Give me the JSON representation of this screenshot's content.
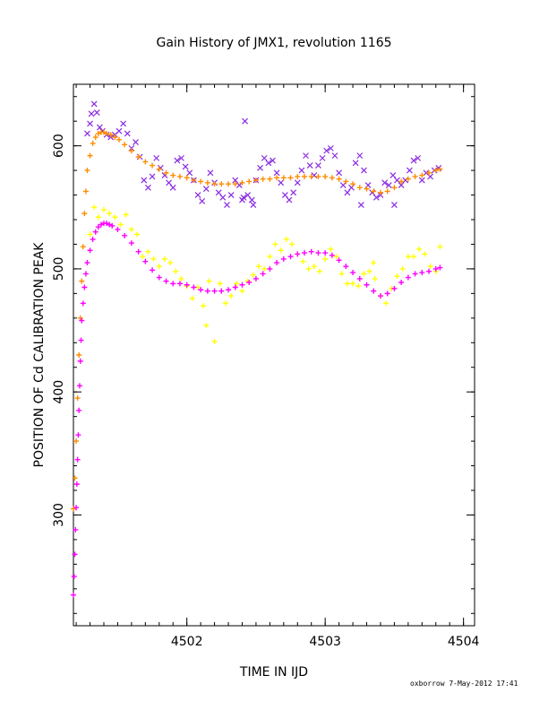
{
  "chart_data": {
    "type": "scatter",
    "title": "Gain History of JMX1, revolution 1165",
    "xlabel": "TIME IN IJD",
    "ylabel": "POSITION OF Cd CALIBRATION PEAK",
    "xlim": [
      4501.18,
      4504.08
    ],
    "ylim": [
      210,
      650
    ],
    "x_ticks": [
      4502,
      4503,
      4504
    ],
    "y_ticks": [
      300,
      400,
      500,
      600
    ],
    "grid": false,
    "series": [
      {
        "color": "#8a2be2",
        "marker": "x",
        "points": [
          [
            4501.28,
            610
          ],
          [
            4501.3,
            618
          ],
          [
            4501.31,
            626
          ],
          [
            4501.33,
            634
          ],
          [
            4501.35,
            627
          ],
          [
            4501.37,
            615
          ],
          [
            4501.39,
            612
          ],
          [
            4501.42,
            609
          ],
          [
            4501.45,
            607
          ],
          [
            4501.48,
            609
          ],
          [
            4501.51,
            612
          ],
          [
            4501.54,
            618
          ],
          [
            4501.57,
            610
          ],
          [
            4501.6,
            598
          ],
          [
            4501.63,
            603
          ],
          [
            4501.66,
            591
          ],
          [
            4501.69,
            572
          ],
          [
            4501.72,
            566
          ],
          [
            4501.75,
            575
          ],
          [
            4501.78,
            590
          ],
          [
            4501.81,
            582
          ],
          [
            4501.84,
            576
          ],
          [
            4501.87,
            570
          ],
          [
            4501.9,
            566
          ],
          [
            4501.93,
            588
          ],
          [
            4501.96,
            590
          ],
          [
            4501.99,
            583
          ],
          [
            4502.02,
            578
          ],
          [
            4502.05,
            572
          ],
          [
            4502.08,
            560
          ],
          [
            4502.11,
            555
          ],
          [
            4502.14,
            565
          ],
          [
            4502.17,
            578
          ],
          [
            4502.2,
            570
          ],
          [
            4502.23,
            562
          ],
          [
            4502.26,
            558
          ],
          [
            4502.29,
            552
          ],
          [
            4502.32,
            560
          ],
          [
            4502.35,
            572
          ],
          [
            4502.38,
            568
          ],
          [
            4502.41,
            558
          ],
          [
            4502.44,
            560
          ],
          [
            4502.47,
            556
          ],
          [
            4502.5,
            572
          ],
          [
            4502.53,
            582
          ],
          [
            4502.56,
            590
          ],
          [
            4502.59,
            586
          ],
          [
            4502.62,
            588
          ],
          [
            4502.65,
            578
          ],
          [
            4502.68,
            570
          ],
          [
            4502.71,
            560
          ],
          [
            4502.74,
            556
          ],
          [
            4502.77,
            562
          ],
          [
            4502.8,
            570
          ],
          [
            4502.83,
            580
          ],
          [
            4502.86,
            592
          ],
          [
            4502.89,
            584
          ],
          [
            4502.92,
            576
          ],
          [
            4502.95,
            584
          ],
          [
            4502.98,
            590
          ],
          [
            4503.01,
            596
          ],
          [
            4503.04,
            598
          ],
          [
            4503.07,
            592
          ],
          [
            4503.1,
            578
          ],
          [
            4503.13,
            568
          ],
          [
            4503.16,
            562
          ],
          [
            4503.19,
            566
          ],
          [
            4503.22,
            586
          ],
          [
            4503.25,
            592
          ],
          [
            4503.28,
            580
          ],
          [
            4503.31,
            568
          ],
          [
            4503.34,
            562
          ],
          [
            4503.37,
            558
          ],
          [
            4503.4,
            560
          ],
          [
            4503.43,
            570
          ],
          [
            4503.46,
            568
          ],
          [
            4503.49,
            576
          ],
          [
            4503.52,
            572
          ],
          [
            4503.55,
            568
          ],
          [
            4503.58,
            572
          ],
          [
            4503.61,
            580
          ],
          [
            4503.64,
            588
          ],
          [
            4503.67,
            590
          ],
          [
            4503.7,
            572
          ],
          [
            4503.73,
            578
          ],
          [
            4503.76,
            575
          ],
          [
            4503.79,
            580
          ],
          [
            4503.82,
            582
          ],
          [
            4502.42,
            620
          ],
          [
            4502.4,
            556
          ],
          [
            4502.48,
            552
          ],
          [
            4503.26,
            552
          ],
          [
            4503.5,
            552
          ]
        ]
      },
      {
        "color": "#ff8c00",
        "marker": "+",
        "points": [
          [
            4501.18,
            305
          ],
          [
            4501.19,
            330
          ],
          [
            4501.2,
            360
          ],
          [
            4501.21,
            395
          ],
          [
            4501.22,
            430
          ],
          [
            4501.23,
            460
          ],
          [
            4501.24,
            490
          ],
          [
            4501.25,
            518
          ],
          [
            4501.26,
            545
          ],
          [
            4501.27,
            563
          ],
          [
            4501.28,
            580
          ],
          [
            4501.3,
            592
          ],
          [
            4501.32,
            602
          ],
          [
            4501.34,
            607
          ],
          [
            4501.36,
            610
          ],
          [
            4501.38,
            611
          ],
          [
            4501.4,
            611
          ],
          [
            4501.42,
            610
          ],
          [
            4501.45,
            609
          ],
          [
            4501.48,
            607
          ],
          [
            4501.51,
            605
          ],
          [
            4501.55,
            601
          ],
          [
            4501.6,
            596
          ],
          [
            4501.65,
            591
          ],
          [
            4501.7,
            587
          ],
          [
            4501.75,
            584
          ],
          [
            4501.8,
            581
          ],
          [
            4501.85,
            578
          ],
          [
            4501.9,
            576
          ],
          [
            4501.95,
            575
          ],
          [
            4502.0,
            574
          ],
          [
            4502.05,
            572
          ],
          [
            4502.1,
            571
          ],
          [
            4502.15,
            570
          ],
          [
            4502.2,
            569
          ],
          [
            4502.25,
            569
          ],
          [
            4502.3,
            569
          ],
          [
            4502.35,
            569
          ],
          [
            4502.4,
            570
          ],
          [
            4502.45,
            571
          ],
          [
            4502.5,
            572
          ],
          [
            4502.55,
            573
          ],
          [
            4502.6,
            573
          ],
          [
            4502.65,
            574
          ],
          [
            4502.7,
            574
          ],
          [
            4502.75,
            574
          ],
          [
            4502.8,
            575
          ],
          [
            4502.85,
            575
          ],
          [
            4502.9,
            575
          ],
          [
            4502.95,
            575
          ],
          [
            4503.0,
            575
          ],
          [
            4503.05,
            574
          ],
          [
            4503.1,
            573
          ],
          [
            4503.15,
            571
          ],
          [
            4503.2,
            569
          ],
          [
            4503.25,
            566
          ],
          [
            4503.3,
            565
          ],
          [
            4503.35,
            563
          ],
          [
            4503.4,
            562
          ],
          [
            4503.45,
            563
          ],
          [
            4503.5,
            566
          ],
          [
            4503.55,
            571
          ],
          [
            4503.6,
            573
          ],
          [
            4503.65,
            575
          ],
          [
            4503.7,
            576
          ],
          [
            4503.75,
            578
          ],
          [
            4503.8,
            580
          ],
          [
            4503.83,
            581
          ]
        ]
      },
      {
        "color": "#ffff00",
        "marker": "+",
        "points": [
          [
            4501.3,
            528
          ],
          [
            4501.33,
            550
          ],
          [
            4501.36,
            542
          ],
          [
            4501.4,
            548
          ],
          [
            4501.44,
            545
          ],
          [
            4501.48,
            542
          ],
          [
            4501.52,
            536
          ],
          [
            4501.56,
            544
          ],
          [
            4501.6,
            532
          ],
          [
            4501.64,
            528
          ],
          [
            4501.68,
            510
          ],
          [
            4501.72,
            514
          ],
          [
            4501.76,
            508
          ],
          [
            4501.8,
            502
          ],
          [
            4501.84,
            508
          ],
          [
            4501.88,
            505
          ],
          [
            4501.92,
            498
          ],
          [
            4501.96,
            492
          ],
          [
            4502.0,
            486
          ],
          [
            4502.04,
            476
          ],
          [
            4502.08,
            485
          ],
          [
            4502.12,
            470
          ],
          [
            4502.16,
            490
          ],
          [
            4502.2,
            441
          ],
          [
            4502.24,
            488
          ],
          [
            4502.28,
            472
          ],
          [
            4502.32,
            478
          ],
          [
            4502.36,
            488
          ],
          [
            4502.4,
            482
          ],
          [
            4502.44,
            490
          ],
          [
            4502.48,
            495
          ],
          [
            4502.52,
            502
          ],
          [
            4502.56,
            500
          ],
          [
            4502.6,
            510
          ],
          [
            4502.64,
            520
          ],
          [
            4502.68,
            515
          ],
          [
            4502.72,
            524
          ],
          [
            4502.76,
            520
          ],
          [
            4502.8,
            512
          ],
          [
            4502.84,
            506
          ],
          [
            4502.88,
            500
          ],
          [
            4502.92,
            502
          ],
          [
            4502.96,
            498
          ],
          [
            4503.0,
            508
          ],
          [
            4503.04,
            516
          ],
          [
            4503.08,
            510
          ],
          [
            4503.12,
            496
          ],
          [
            4503.16,
            488
          ],
          [
            4503.2,
            488
          ],
          [
            4503.24,
            486
          ],
          [
            4503.28,
            496
          ],
          [
            4503.32,
            498
          ],
          [
            4503.36,
            492
          ],
          [
            4503.4,
            478
          ],
          [
            4503.44,
            472
          ],
          [
            4503.48,
            484
          ],
          [
            4503.52,
            494
          ],
          [
            4503.56,
            500
          ],
          [
            4503.6,
            510
          ],
          [
            4503.64,
            510
          ],
          [
            4503.68,
            516
          ],
          [
            4503.72,
            512
          ],
          [
            4503.76,
            502
          ],
          [
            4503.8,
            498
          ],
          [
            4503.83,
            518
          ],
          [
            4502.14,
            454
          ],
          [
            4503.35,
            505
          ]
        ]
      },
      {
        "color": "#ff00ff",
        "marker": "+",
        "points": [
          [
            4501.18,
            235
          ],
          [
            4501.185,
            250
          ],
          [
            4501.19,
            268
          ],
          [
            4501.195,
            288
          ],
          [
            4501.2,
            306
          ],
          [
            4501.205,
            325
          ],
          [
            4501.21,
            345
          ],
          [
            4501.215,
            365
          ],
          [
            4501.22,
            385
          ],
          [
            4501.225,
            405
          ],
          [
            4501.23,
            425
          ],
          [
            4501.235,
            442
          ],
          [
            4501.24,
            458
          ],
          [
            4501.25,
            472
          ],
          [
            4501.26,
            485
          ],
          [
            4501.27,
            496
          ],
          [
            4501.28,
            505
          ],
          [
            4501.3,
            515
          ],
          [
            4501.32,
            524
          ],
          [
            4501.34,
            530
          ],
          [
            4501.36,
            534
          ],
          [
            4501.38,
            536
          ],
          [
            4501.4,
            537
          ],
          [
            4501.42,
            537
          ],
          [
            4501.44,
            536
          ],
          [
            4501.46,
            535
          ],
          [
            4501.5,
            532
          ],
          [
            4501.55,
            527
          ],
          [
            4501.6,
            521
          ],
          [
            4501.65,
            514
          ],
          [
            4501.7,
            506
          ],
          [
            4501.75,
            499
          ],
          [
            4501.8,
            493
          ],
          [
            4501.85,
            490
          ],
          [
            4501.9,
            488
          ],
          [
            4501.95,
            488
          ],
          [
            4502.0,
            487
          ],
          [
            4502.05,
            485
          ],
          [
            4502.1,
            483
          ],
          [
            4502.15,
            482
          ],
          [
            4502.2,
            482
          ],
          [
            4502.25,
            482
          ],
          [
            4502.3,
            483
          ],
          [
            4502.35,
            485
          ],
          [
            4502.4,
            487
          ],
          [
            4502.45,
            489
          ],
          [
            4502.5,
            492
          ],
          [
            4502.55,
            496
          ],
          [
            4502.6,
            500
          ],
          [
            4502.65,
            505
          ],
          [
            4502.7,
            508
          ],
          [
            4502.75,
            510
          ],
          [
            4502.8,
            512
          ],
          [
            4502.85,
            513
          ],
          [
            4502.9,
            514
          ],
          [
            4502.95,
            513
          ],
          [
            4503.0,
            513
          ],
          [
            4503.05,
            511
          ],
          [
            4503.1,
            507
          ],
          [
            4503.15,
            502
          ],
          [
            4503.2,
            497
          ],
          [
            4503.25,
            492
          ],
          [
            4503.3,
            487
          ],
          [
            4503.35,
            482
          ],
          [
            4503.4,
            478
          ],
          [
            4503.45,
            480
          ],
          [
            4503.5,
            484
          ],
          [
            4503.55,
            489
          ],
          [
            4503.6,
            493
          ],
          [
            4503.65,
            496
          ],
          [
            4503.7,
            497
          ],
          [
            4503.75,
            498
          ],
          [
            4503.8,
            500
          ],
          [
            4503.83,
            501
          ]
        ]
      }
    ]
  },
  "footer": "oxborrow  7-May-2012 17:41"
}
